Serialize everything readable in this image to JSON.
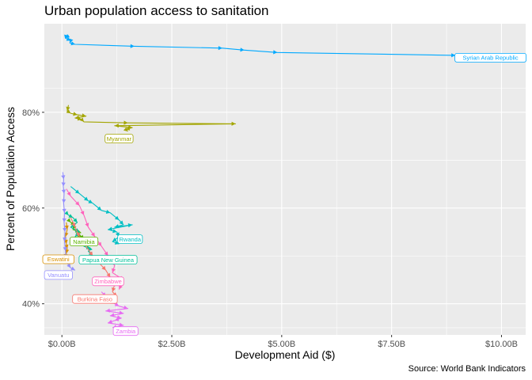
{
  "chart_data": {
    "type": "line",
    "title": "Urban population access to sanitation",
    "xlabel": "Development Aid ($)",
    "ylabel": "Percent of Population Access",
    "caption": "Source: World Bank Indicators",
    "xlim": [
      -0.4,
      10.55
    ],
    "ylim": [
      33.5,
      98.5
    ],
    "x_units": "billions USD",
    "y_units": "percent",
    "x_ticks": [
      0,
      2.5,
      5,
      7.5,
      10
    ],
    "x_tick_labels": [
      "$0.00B",
      "$2.50B",
      "$5.00B",
      "$7.50B",
      "$10.00B"
    ],
    "y_ticks": [
      40,
      60,
      80
    ],
    "y_tick_labels": [
      "40%",
      "60%",
      "80%"
    ],
    "grid": true,
    "legend": "none (direct labels)",
    "series": [
      {
        "name": "Syrian Arab Republic",
        "color": "#00A9FF",
        "x": [
          0.1,
          0.15,
          0.08,
          0.2,
          0.18,
          0.3,
          1.65,
          3.65,
          4.15,
          4.9,
          8.95,
          10.35
        ],
        "y": [
          95.9,
          96.0,
          95.5,
          95.0,
          94.5,
          94.2,
          93.8,
          93.4,
          93.0,
          92.5,
          91.9,
          91.4
        ],
        "label_x": 9.75,
        "label_y": 91.4
      },
      {
        "name": "Myanmar",
        "color": "#A3A500",
        "x": [
          0.15,
          0.12,
          0.2,
          0.35,
          0.55,
          0.3,
          0.45,
          0.5,
          1.5,
          3.95,
          1.2,
          1.6,
          1.45,
          1.5
        ],
        "y": [
          81.5,
          80.3,
          79.8,
          79.5,
          79.2,
          78.8,
          78.5,
          78.0,
          77.8,
          77.6,
          77.2,
          76.8,
          76.4,
          76.0
        ],
        "label_x": 1.3,
        "label_y": 74.5
      },
      {
        "name": "Rwanda",
        "color": "#00BFC4",
        "x": [
          0.2,
          0.4,
          0.6,
          0.7,
          0.9,
          1.1,
          1.3,
          1.4,
          1.2,
          1.6,
          1.05,
          1.25,
          1.3,
          1.15,
          1.3
        ],
        "y": [
          64.5,
          63.0,
          61.5,
          61.0,
          59.5,
          59.0,
          57.5,
          56.5,
          56.0,
          56.5,
          55.5,
          55.0,
          54.0,
          53.0,
          52.5
        ],
        "label_x": 1.55,
        "label_y": 53.5
      },
      {
        "name": "Namibia",
        "color": "#5BB300",
        "x": [
          0.15,
          0.2,
          0.3,
          0.25,
          0.4,
          0.35,
          0.45,
          0.5,
          0.55
        ],
        "y": [
          57.5,
          57.0,
          56.5,
          55.5,
          55.0,
          54.5,
          54.0,
          53.5,
          53.0
        ],
        "label_x": 0.5,
        "label_y": 53.0
      },
      {
        "name": "Papua New Guinea",
        "color": "#00C19A",
        "x": [
          0.1,
          0.15,
          0.25,
          0.35,
          0.2,
          0.4,
          0.3,
          0.45,
          0.55,
          0.5,
          0.65,
          0.6,
          0.7
        ],
        "y": [
          59.0,
          58.5,
          58.0,
          57.0,
          56.0,
          55.0,
          54.0,
          53.0,
          52.5,
          52.0,
          51.5,
          51.0,
          50.0
        ],
        "label_x": 1.05,
        "label_y": 49.2
      },
      {
        "name": "Eswatini",
        "color": "#D89000",
        "x": [
          0.1,
          0.12,
          0.08,
          0.1,
          0.12,
          0.1,
          0.08
        ],
        "y": [
          57.0,
          55.5,
          54.0,
          52.5,
          51.5,
          50.5,
          49.5
        ],
        "label_x": -0.08,
        "label_y": 49.3
      },
      {
        "name": "Vanuatu",
        "color": "#9590FF",
        "x": [
          0.02,
          0.04,
          0.03,
          0.05,
          0.04,
          0.06,
          0.05,
          0.07,
          0.06,
          0.08,
          0.09,
          0.12,
          0.2,
          0.3
        ],
        "y": [
          67.5,
          66.0,
          64.5,
          63.0,
          61.0,
          59.0,
          57.0,
          55.0,
          53.0,
          51.0,
          49.5,
          48.5,
          47.5,
          47.0
        ],
        "label_x": -0.08,
        "label_y": 46.0
      },
      {
        "name": "Zimbabwe",
        "color": "#FF62BC",
        "x": [
          0.1,
          0.2,
          0.4,
          0.5,
          0.6,
          0.75,
          0.9,
          1.05,
          1.2,
          1.15,
          1.4,
          1.3
        ],
        "y": [
          64.0,
          62.5,
          60.5,
          58.5,
          56.0,
          54.0,
          52.0,
          50.0,
          48.0,
          46.5,
          45.0,
          43.0
        ],
        "label_x": 1.05,
        "label_y": 44.7
      },
      {
        "name": "Burkina Faso",
        "color": "#F8766D",
        "x": [
          0.2,
          0.3,
          0.4,
          0.55,
          0.7,
          0.85,
          1.0,
          1.1,
          1.2,
          1.15,
          1.25,
          1.15
        ],
        "y": [
          58.0,
          56.0,
          54.0,
          52.0,
          50.0,
          48.5,
          47.0,
          45.5,
          44.0,
          42.5,
          41.5,
          40.5
        ],
        "label_x": 0.75,
        "label_y": 41.0
      },
      {
        "name": "Zambia",
        "color": "#E76BF3",
        "x": [
          0.9,
          1.0,
          1.1,
          1.2,
          1.3,
          1.5,
          1.0,
          1.4,
          1.1,
          1.35,
          1.2,
          1.05,
          1.4,
          1.15
        ],
        "y": [
          42.5,
          41.5,
          40.5,
          40.0,
          39.5,
          39.0,
          38.5,
          38.0,
          37.5,
          37.0,
          36.5,
          36.0,
          35.5,
          35.0
        ],
        "label_x": 1.45,
        "label_y": 34.3
      }
    ]
  }
}
